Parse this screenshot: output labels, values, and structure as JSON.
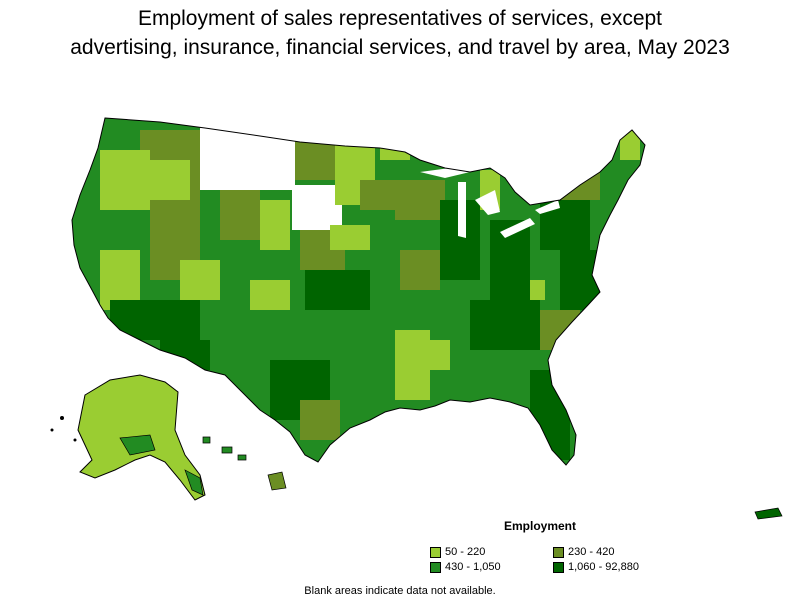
{
  "title_line1": "Employment of sales representatives of services, except",
  "title_line2": "advertising, insurance, financial services, and travel by area, May 2023",
  "legend": {
    "title": "Employment",
    "items": [
      {
        "label": "50 - 220",
        "color": "#9acd32"
      },
      {
        "label": "230 - 420",
        "color": "#6b8e23"
      },
      {
        "label": "430 - 1,050",
        "color": "#228b22"
      },
      {
        "label": "1,060 - 92,880",
        "color": "#006400"
      }
    ]
  },
  "note": "Blank areas indicate data not available.",
  "colors": {
    "no_data": "#ffffff",
    "border": "#000000"
  }
}
